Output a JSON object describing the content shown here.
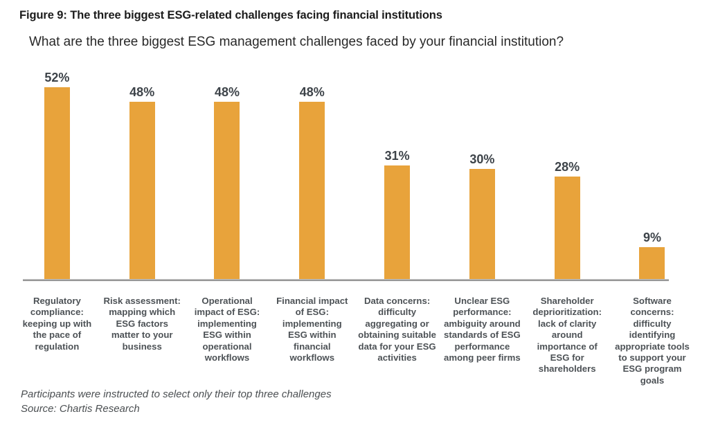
{
  "figure": {
    "title": "Figure 9: The three biggest ESG-related challenges facing financial institutions",
    "question": "What are the three biggest ESG management challenges faced by your financial institution?",
    "footnote": "Participants were instructed to select only their top three challenges",
    "source": "Source: Chartis Research"
  },
  "chart_data": {
    "type": "bar",
    "title": "Figure 9: The three biggest ESG-related challenges facing financial institutions",
    "subtitle": "What are the three biggest ESG management challenges faced by your financial institution?",
    "categories": [
      "Regulatory compliance: keeping up with the pace of regulation",
      "Risk assessment: mapping which ESG factors matter to your business",
      "Operational impact of ESG: implementing ESG within operational workflows",
      "Financial impact of ESG: implementing ESG within financial workflows",
      "Data concerns: difficulty aggregating or obtaining suitable data for your ESG activities",
      "Unclear ESG performance: ambiguity around standards of ESG performance among peer firms",
      "Shareholder deprioritization: lack of clarity around importance of ESG for shareholders",
      "Software concerns: difficulty identifying appropriate tools to support your ESG program goals"
    ],
    "values": [
      52,
      48,
      48,
      48,
      31,
      30,
      28,
      9
    ],
    "value_labels": [
      "52%",
      "48%",
      "48%",
      "48%",
      "31%",
      "30%",
      "28%",
      "9%"
    ],
    "xlabel": "",
    "ylabel": "",
    "ylim": [
      0,
      57
    ],
    "grid": false,
    "legend": "none",
    "bar_color": "#E8A33B",
    "value_label_color": "#3d4349",
    "category_label_color": "#4d5256",
    "axis_line_color": "#8e8e8e",
    "footnote": "Participants were instructed to select only their top three challenges",
    "source": "Source: Chartis Research"
  }
}
